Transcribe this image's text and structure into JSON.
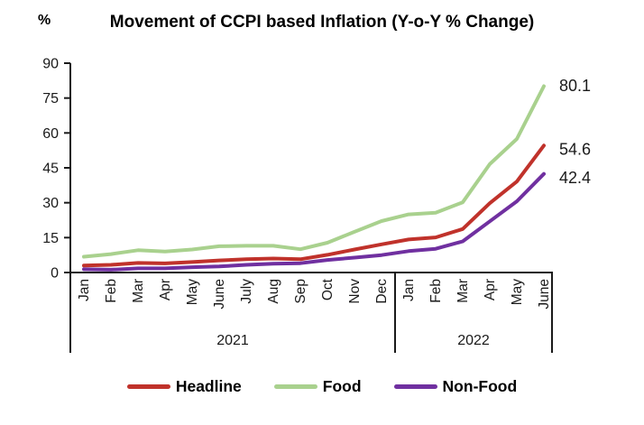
{
  "chart_data": {
    "type": "line",
    "title": "Movement of CCPI based Inflation (Y-o-Y % Change)",
    "y_unit_label": "%",
    "ylim": [
      0,
      90
    ],
    "y_ticks": [
      0,
      15,
      30,
      45,
      60,
      75,
      90
    ],
    "grid": false,
    "legend_position": "bottom",
    "categories": [
      "Jan",
      "Feb",
      "Mar",
      "Apr",
      "May",
      "June",
      "July",
      "Aug",
      "Sep",
      "Oct",
      "Nov",
      "Dec",
      "Jan",
      "Feb",
      "Mar",
      "Apr",
      "May",
      "June"
    ],
    "year_groups": [
      {
        "label": "2021",
        "months": 12
      },
      {
        "label": "2022",
        "months": 6
      }
    ],
    "series": [
      {
        "name": "Headline",
        "color": "#c0322b",
        "end_label": "54.6",
        "values": [
          3.0,
          3.3,
          4.1,
          3.9,
          4.5,
          5.2,
          5.7,
          6.0,
          5.7,
          7.6,
          9.9,
          12.1,
          14.2,
          15.1,
          18.7,
          29.8,
          39.1,
          54.6
        ]
      },
      {
        "name": "Food",
        "color": "#a9d18e",
        "end_label": "80.1",
        "values": [
          6.8,
          7.9,
          9.6,
          9.0,
          9.9,
          11.3,
          11.5,
          11.5,
          10.0,
          12.8,
          17.5,
          22.1,
          25.0,
          25.7,
          30.2,
          46.6,
          57.4,
          80.1
        ]
      },
      {
        "name": "Non-Food",
        "color": "#7030a0",
        "end_label": "42.4",
        "values": [
          1.4,
          1.2,
          1.8,
          1.8,
          2.3,
          2.6,
          3.3,
          3.8,
          4.0,
          5.4,
          6.4,
          7.5,
          9.2,
          10.2,
          13.4,
          22.0,
          30.6,
          42.4
        ]
      }
    ]
  }
}
